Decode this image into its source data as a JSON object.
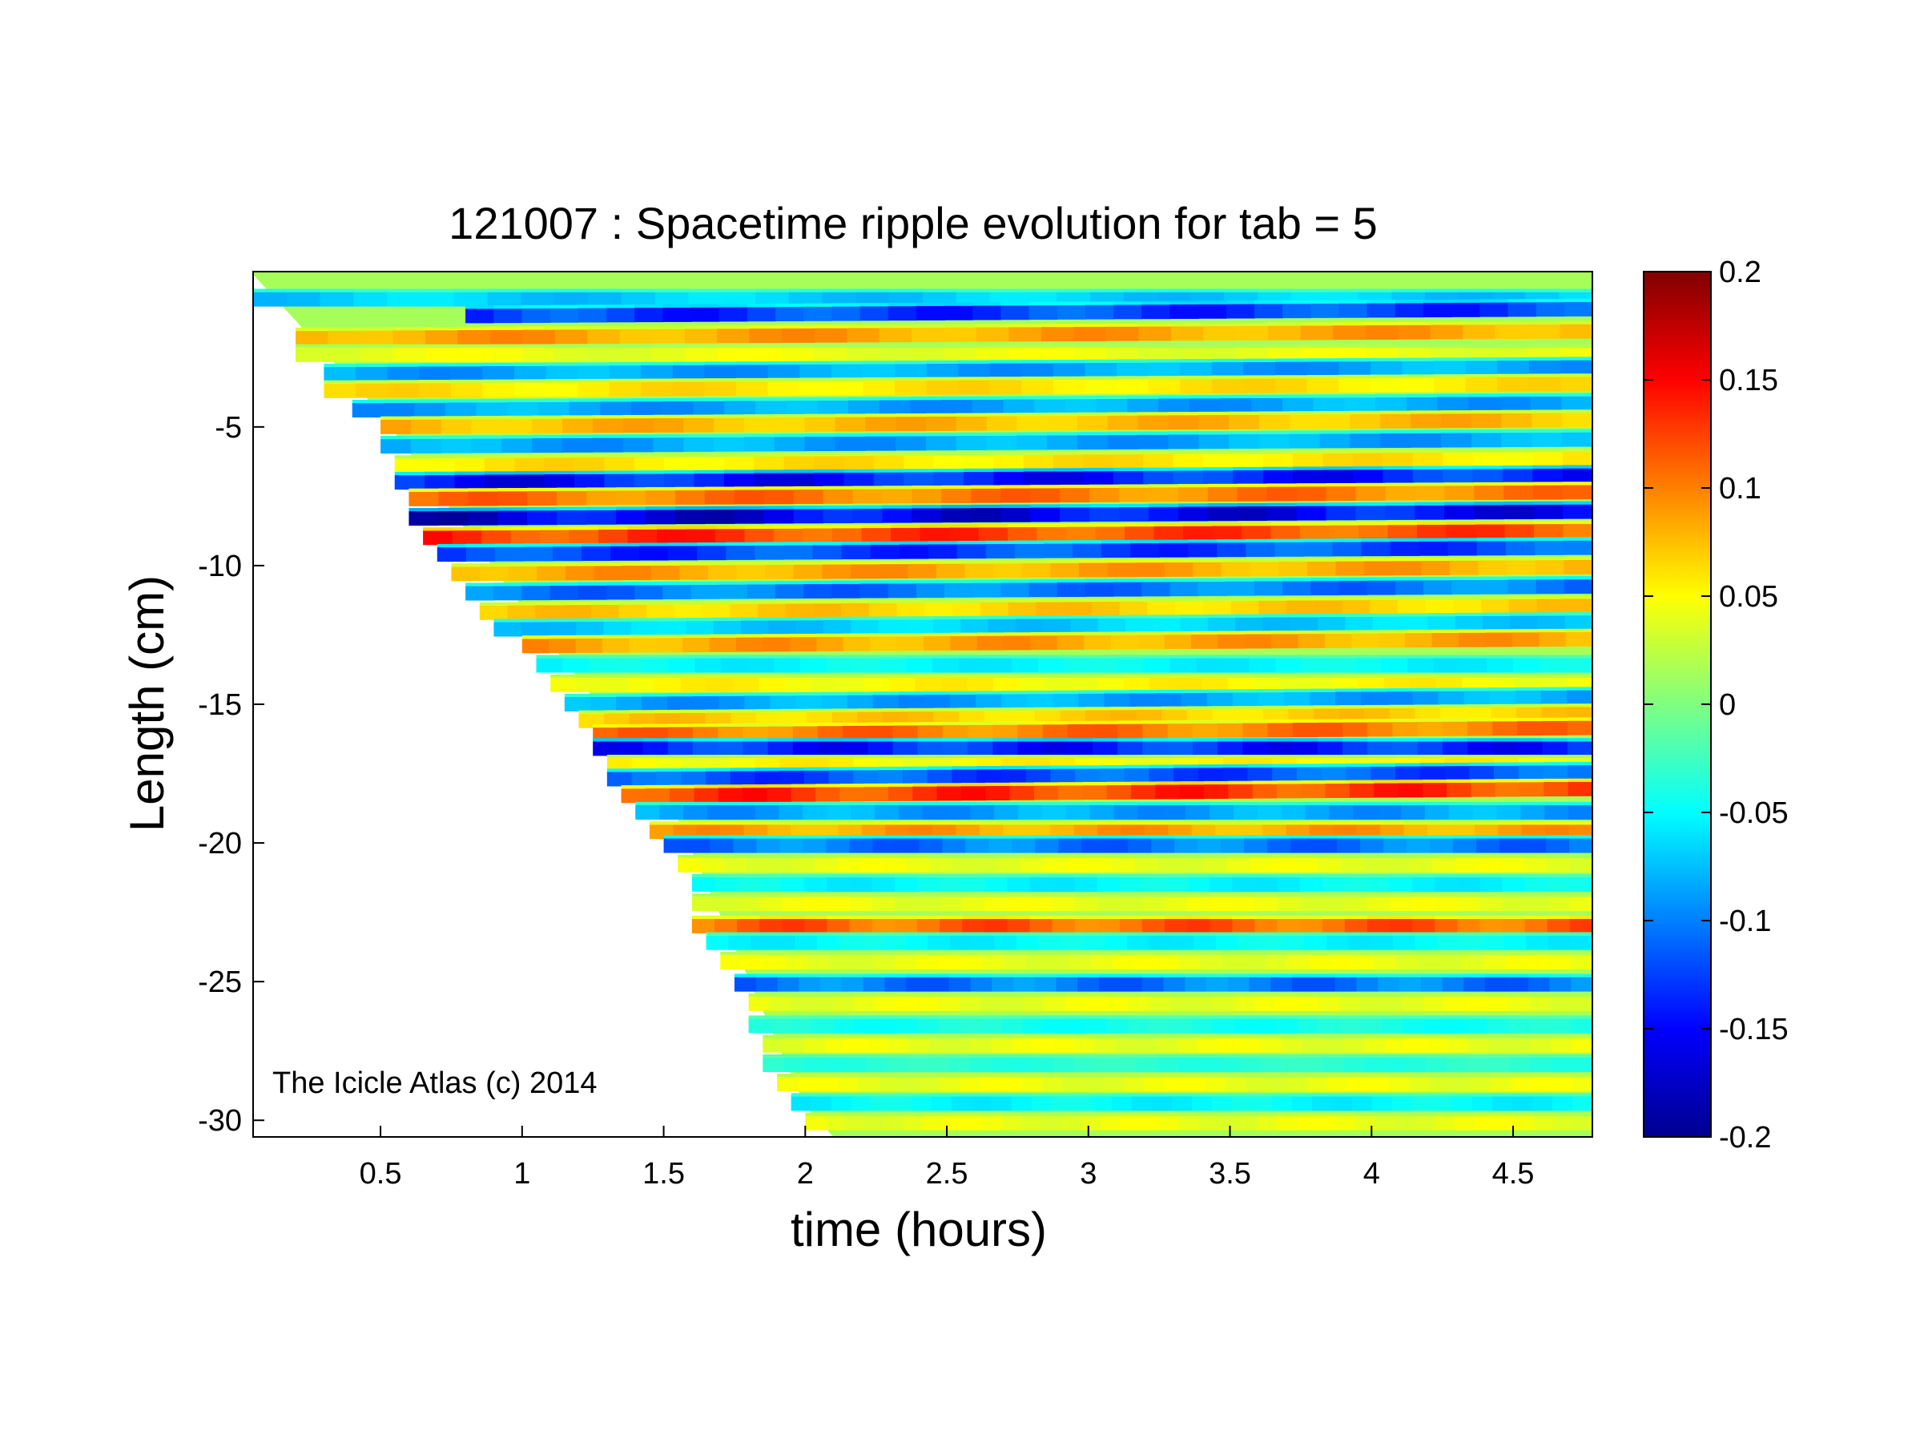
{
  "chart_data": {
    "type": "heatmap",
    "title": "121007 : Spacetime ripple evolution for tab = 5",
    "xlabel": "time (hours)",
    "ylabel": "Length (cm)",
    "xlim": [
      0.05,
      4.78
    ],
    "ylim": [
      -30.6,
      0.6
    ],
    "x_ticks": [
      0.5,
      1,
      1.5,
      2,
      2.5,
      3,
      3.5,
      4,
      4.5
    ],
    "x_tick_labels": [
      "0.5",
      "1",
      "1.5",
      "2",
      "2.5",
      "3",
      "3.5",
      "4",
      "4.5"
    ],
    "y_ticks": [
      -5,
      -10,
      -15,
      -20,
      -25,
      -30
    ],
    "y_tick_labels": [
      "-5",
      "-10",
      "-15",
      "-20",
      "-25",
      "-30"
    ],
    "colorbar": {
      "range": [
        -0.2,
        0.2
      ],
      "ticks": [
        0.2,
        0.15,
        0.1,
        0.05,
        0,
        -0.05,
        -0.1,
        -0.15,
        -0.2
      ],
      "tick_labels": [
        "0.2",
        "0.15",
        "0.1",
        "0.05",
        "0",
        "-0.05",
        "-0.1",
        "-0.15",
        "-0.2"
      ],
      "colormap": "jet"
    },
    "data_start_boundary": {
      "description": "leading edge of measured region (length vs time)",
      "points": [
        [
          0.05,
          0.5
        ],
        [
          0.5,
          -4.5
        ],
        [
          1.0,
          -11.5
        ],
        [
          1.5,
          -18.0
        ],
        [
          2.0,
          -29.5
        ],
        [
          2.1,
          -30.6
        ]
      ]
    },
    "bands": [
      {
        "length": -0.4,
        "value": -0.08,
        "t_start": 0.05,
        "t_end": 4.78,
        "trend": -0.012
      },
      {
        "length": -1.0,
        "value": -0.15,
        "t_start": 0.8,
        "t_end": 4.78,
        "trend": 0.06
      },
      {
        "length": -1.8,
        "value": 0.1,
        "t_start": 0.2,
        "t_end": 4.78,
        "trend": 0.04
      },
      {
        "length": -2.4,
        "value": 0.05,
        "t_start": 0.2,
        "t_end": 4.78,
        "trend": 0.0
      },
      {
        "length": -3.1,
        "value": -0.1,
        "t_start": 0.3,
        "t_end": 4.78,
        "trend": 0.05
      },
      {
        "length": -3.7,
        "value": 0.07,
        "t_start": 0.3,
        "t_end": 4.78,
        "trend": 0.02
      },
      {
        "length": -4.4,
        "value": -0.1,
        "t_start": 0.4,
        "t_end": 4.78,
        "trend": 0.05
      },
      {
        "length": -5.0,
        "value": 0.09,
        "t_start": 0.5,
        "t_end": 4.78,
        "trend": 0.05
      },
      {
        "length": -5.7,
        "value": -0.1,
        "t_start": 0.5,
        "t_end": 4.78,
        "trend": 0.05
      },
      {
        "length": -6.4,
        "value": 0.07,
        "t_start": 0.55,
        "t_end": 4.78,
        "trend": 0.05
      },
      {
        "length": -7.0,
        "value": -0.17,
        "t_start": 0.55,
        "t_end": 4.78,
        "trend": 0.15
      },
      {
        "length": -7.6,
        "value": 0.12,
        "t_start": 0.6,
        "t_end": 4.78,
        "trend": 0.1
      },
      {
        "length": -8.3,
        "value": -0.19,
        "t_start": 0.6,
        "t_end": 4.78,
        "trend": 0.2
      },
      {
        "length": -9.0,
        "value": 0.15,
        "t_start": 0.65,
        "t_end": 4.78,
        "trend": 0.2
      },
      {
        "length": -9.6,
        "value": -0.15,
        "t_start": 0.7,
        "t_end": 4.78,
        "trend": 0.15
      },
      {
        "length": -10.3,
        "value": 0.1,
        "t_start": 0.75,
        "t_end": 4.78,
        "trend": 0.1
      },
      {
        "length": -11.0,
        "value": -0.12,
        "t_start": 0.8,
        "t_end": 4.78,
        "trend": 0.05
      },
      {
        "length": -11.7,
        "value": 0.08,
        "t_start": 0.85,
        "t_end": 4.78,
        "trend": 0.05
      },
      {
        "length": -12.3,
        "value": -0.08,
        "t_start": 0.9,
        "t_end": 4.78,
        "trend": 0.05
      },
      {
        "length": -12.9,
        "value": 0.1,
        "t_start": 1.0,
        "t_end": 4.78,
        "trend": 0.05
      },
      {
        "length": -13.6,
        "value": -0.06,
        "t_start": 1.05,
        "t_end": 4.78,
        "trend": 0.0
      },
      {
        "length": -14.3,
        "value": 0.06,
        "t_start": 1.1,
        "t_end": 4.78,
        "trend": 0.0
      },
      {
        "length": -15.0,
        "value": -0.1,
        "t_start": 1.15,
        "t_end": 4.78,
        "trend": 0.05
      },
      {
        "length": -15.6,
        "value": 0.08,
        "t_start": 1.2,
        "t_end": 4.78,
        "trend": 0.05
      },
      {
        "length": -16.1,
        "value": 0.12,
        "t_start": 1.25,
        "t_end": 4.78,
        "trend": 0.05
      },
      {
        "length": -16.6,
        "value": -0.16,
        "t_start": 1.25,
        "t_end": 4.78,
        "trend": 0.0
      },
      {
        "length": -17.2,
        "value": 0.06,
        "t_start": 1.3,
        "t_end": 4.78,
        "trend": 0.0
      },
      {
        "length": -17.7,
        "value": -0.14,
        "t_start": 1.3,
        "t_end": 4.78,
        "trend": 0.05
      },
      {
        "length": -18.3,
        "value": 0.15,
        "t_start": 1.35,
        "t_end": 4.78,
        "trend": 0.05
      },
      {
        "length": -18.9,
        "value": -0.1,
        "t_start": 1.4,
        "t_end": 4.78,
        "trend": 0.0
      },
      {
        "length": -19.6,
        "value": 0.1,
        "t_start": 1.45,
        "t_end": 4.78,
        "trend": 0.0
      },
      {
        "length": -20.1,
        "value": -0.12,
        "t_start": 1.5,
        "t_end": 4.78,
        "trend": 0.0
      },
      {
        "length": -20.8,
        "value": 0.05,
        "t_start": 1.55,
        "t_end": 4.78,
        "trend": 0.0
      },
      {
        "length": -21.5,
        "value": -0.06,
        "t_start": 1.6,
        "t_end": 4.78,
        "trend": 0.0
      },
      {
        "length": -22.2,
        "value": 0.05,
        "t_start": 1.6,
        "t_end": 4.78,
        "trend": 0.0
      },
      {
        "length": -23.0,
        "value": 0.13,
        "t_start": 1.6,
        "t_end": 4.78,
        "trend": 0.0
      },
      {
        "length": -23.6,
        "value": -0.06,
        "t_start": 1.65,
        "t_end": 4.78,
        "trend": 0.0
      },
      {
        "length": -24.3,
        "value": 0.05,
        "t_start": 1.7,
        "t_end": 4.78,
        "trend": 0.0
      },
      {
        "length": -25.1,
        "value": -0.12,
        "t_start": 1.75,
        "t_end": 4.78,
        "trend": 0.0
      },
      {
        "length": -25.8,
        "value": 0.05,
        "t_start": 1.8,
        "t_end": 4.78,
        "trend": 0.0
      },
      {
        "length": -26.6,
        "value": -0.05,
        "t_start": 1.8,
        "t_end": 4.78,
        "trend": 0.0
      },
      {
        "length": -27.3,
        "value": 0.05,
        "t_start": 1.85,
        "t_end": 4.78,
        "trend": 0.0
      },
      {
        "length": -28.0,
        "value": -0.04,
        "t_start": 1.85,
        "t_end": 4.78,
        "trend": 0.0
      },
      {
        "length": -28.7,
        "value": 0.05,
        "t_start": 1.9,
        "t_end": 4.78,
        "trend": 0.0
      },
      {
        "length": -29.4,
        "value": -0.06,
        "t_start": 1.95,
        "t_end": 4.78,
        "trend": 0.0
      },
      {
        "length": -30.1,
        "value": 0.05,
        "t_start": 2.0,
        "t_end": 4.78,
        "trend": 0.0
      }
    ],
    "annotation": "The Icicle Atlas (c) 2014"
  }
}
